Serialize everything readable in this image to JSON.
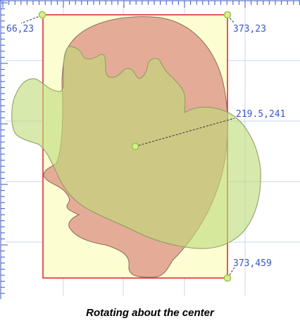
{
  "caption": "Rotating about the center",
  "labels": {
    "top_left": "66,23",
    "top_right": "373,23",
    "center": "219.5,241",
    "bottom_right": "373,459"
  },
  "colors": {
    "ruler": "#3a55c8",
    "grid": "#c8d4ec",
    "box_stroke": "#e02020",
    "box_fill": "#fdfdd2",
    "shape_red": "#d98c80",
    "shape_green": "#bfdc7a",
    "handle": "#9bc83c",
    "label": "#3a55c8"
  }
}
